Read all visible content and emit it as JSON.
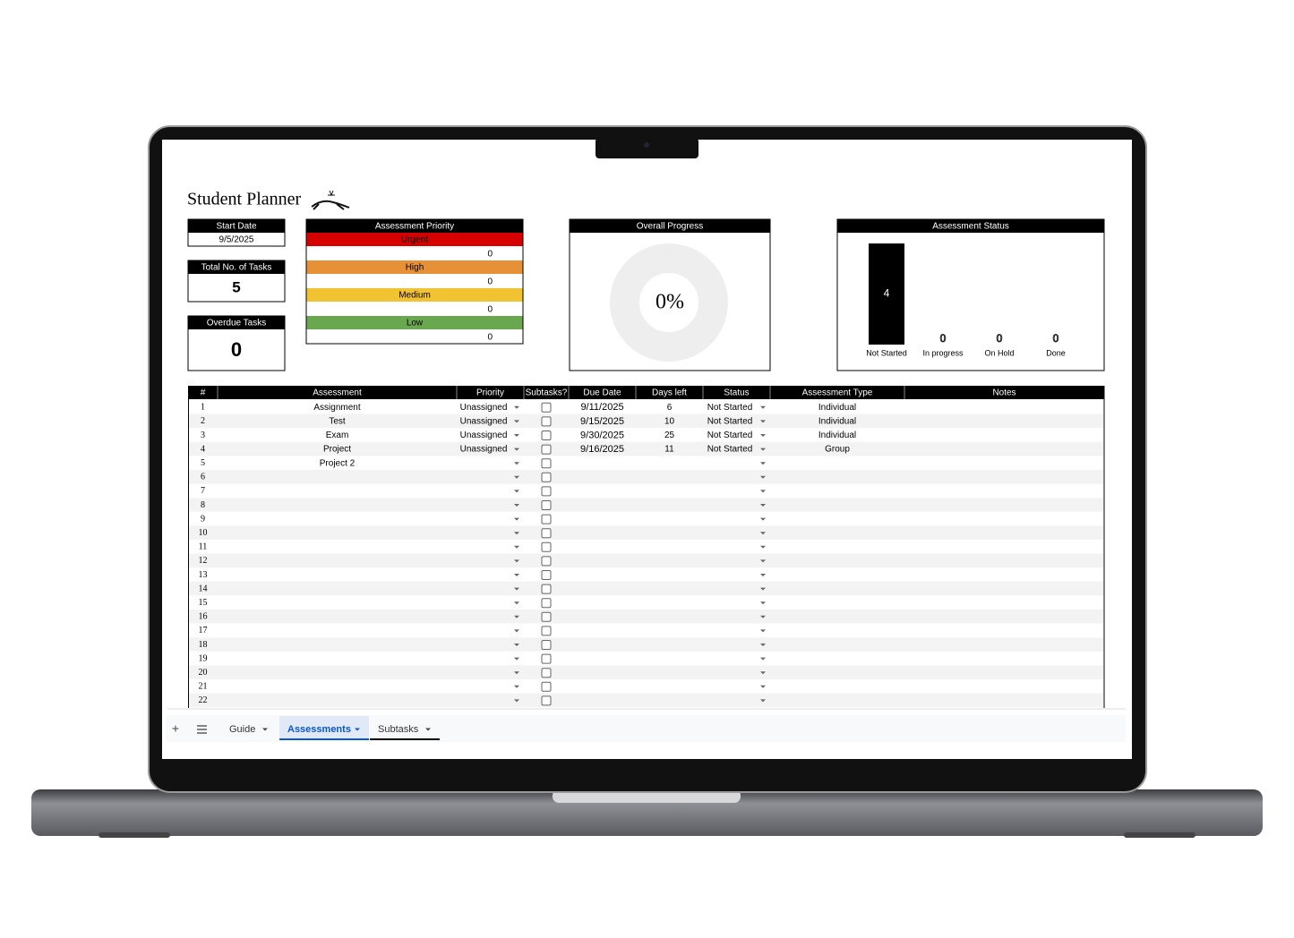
{
  "title": "Student Planner",
  "start_date": {
    "label": "Start Date",
    "value": "9/5/2025"
  },
  "total_tasks": {
    "label": "Total No. of Tasks",
    "value": 5
  },
  "overdue_tasks": {
    "label": "Overdue Tasks",
    "value": 0
  },
  "priority": {
    "title": "Assessment Priority",
    "items": [
      {
        "name": "Urgent",
        "count": 0,
        "color": "#d50000",
        "text_color": "#7a0000"
      },
      {
        "name": "High",
        "count": 0,
        "color": "#e69138",
        "text_color": "#000000"
      },
      {
        "name": "Medium",
        "count": 0,
        "color": "#f1c232",
        "text_color": "#000000"
      },
      {
        "name": "Low",
        "count": 0,
        "color": "#6aa84f",
        "text_color": "#000000"
      }
    ]
  },
  "progress": {
    "title": "Overall Progress",
    "value": 0,
    "value_label": "0%",
    "color": "#000000",
    "track_color": "#eeeeee"
  },
  "status_chart": {
    "type": "bar",
    "title": "Assessment Status",
    "categories": [
      "Not Started",
      "In progress",
      "On Hold",
      "Done"
    ],
    "values": [
      4,
      0,
      0,
      0
    ],
    "color": "#000000"
  },
  "table": {
    "columns": [
      "#",
      "Assessment",
      "Priority",
      "Subtasks?",
      "Due Date",
      "Days left",
      "Status",
      "Assessment Type",
      "Notes"
    ],
    "rows": [
      [
        1,
        "Assignment",
        "Unassigned",
        false,
        "9/11/2025",
        6,
        "Not Started",
        "Individual",
        null
      ],
      [
        2,
        "Test",
        "Unassigned",
        false,
        "9/15/2025",
        10,
        "Not Started",
        "Individual",
        null
      ],
      [
        3,
        "Exam",
        "Unassigned",
        false,
        "9/30/2025",
        25,
        "Not Started",
        "Individual",
        null
      ],
      [
        4,
        "Project",
        "Unassigned",
        false,
        "9/16/2025",
        11,
        "Not Started",
        "Group",
        null
      ],
      [
        5,
        "Project 2",
        null,
        false,
        null,
        null,
        null,
        null,
        null
      ],
      [
        6,
        null,
        null,
        false,
        null,
        null,
        null,
        null,
        null
      ],
      [
        7,
        null,
        null,
        false,
        null,
        null,
        null,
        null,
        null
      ],
      [
        8,
        null,
        null,
        false,
        null,
        null,
        null,
        null,
        null
      ],
      [
        9,
        null,
        null,
        false,
        null,
        null,
        null,
        null,
        null
      ],
      [
        10,
        null,
        null,
        false,
        null,
        null,
        null,
        null,
        null
      ],
      [
        11,
        null,
        null,
        false,
        null,
        null,
        null,
        null,
        null
      ],
      [
        12,
        null,
        null,
        false,
        null,
        null,
        null,
        null,
        null
      ],
      [
        13,
        null,
        null,
        false,
        null,
        null,
        null,
        null,
        null
      ],
      [
        14,
        null,
        null,
        false,
        null,
        null,
        null,
        null,
        null
      ],
      [
        15,
        null,
        null,
        false,
        null,
        null,
        null,
        null,
        null
      ],
      [
        16,
        null,
        null,
        false,
        null,
        null,
        null,
        null,
        null
      ],
      [
        17,
        null,
        null,
        false,
        null,
        null,
        null,
        null,
        null
      ],
      [
        18,
        null,
        null,
        false,
        null,
        null,
        null,
        null,
        null
      ],
      [
        19,
        null,
        null,
        false,
        null,
        null,
        null,
        null,
        null
      ],
      [
        20,
        null,
        null,
        false,
        null,
        null,
        null,
        null,
        null
      ],
      [
        21,
        null,
        null,
        false,
        null,
        null,
        null,
        null,
        null
      ],
      [
        22,
        null,
        null,
        false,
        null,
        null,
        null,
        null,
        null
      ]
    ]
  },
  "sheet_tabs": {
    "tabs": [
      "Guide",
      "Assessments",
      "Subtasks"
    ],
    "active": 1
  }
}
